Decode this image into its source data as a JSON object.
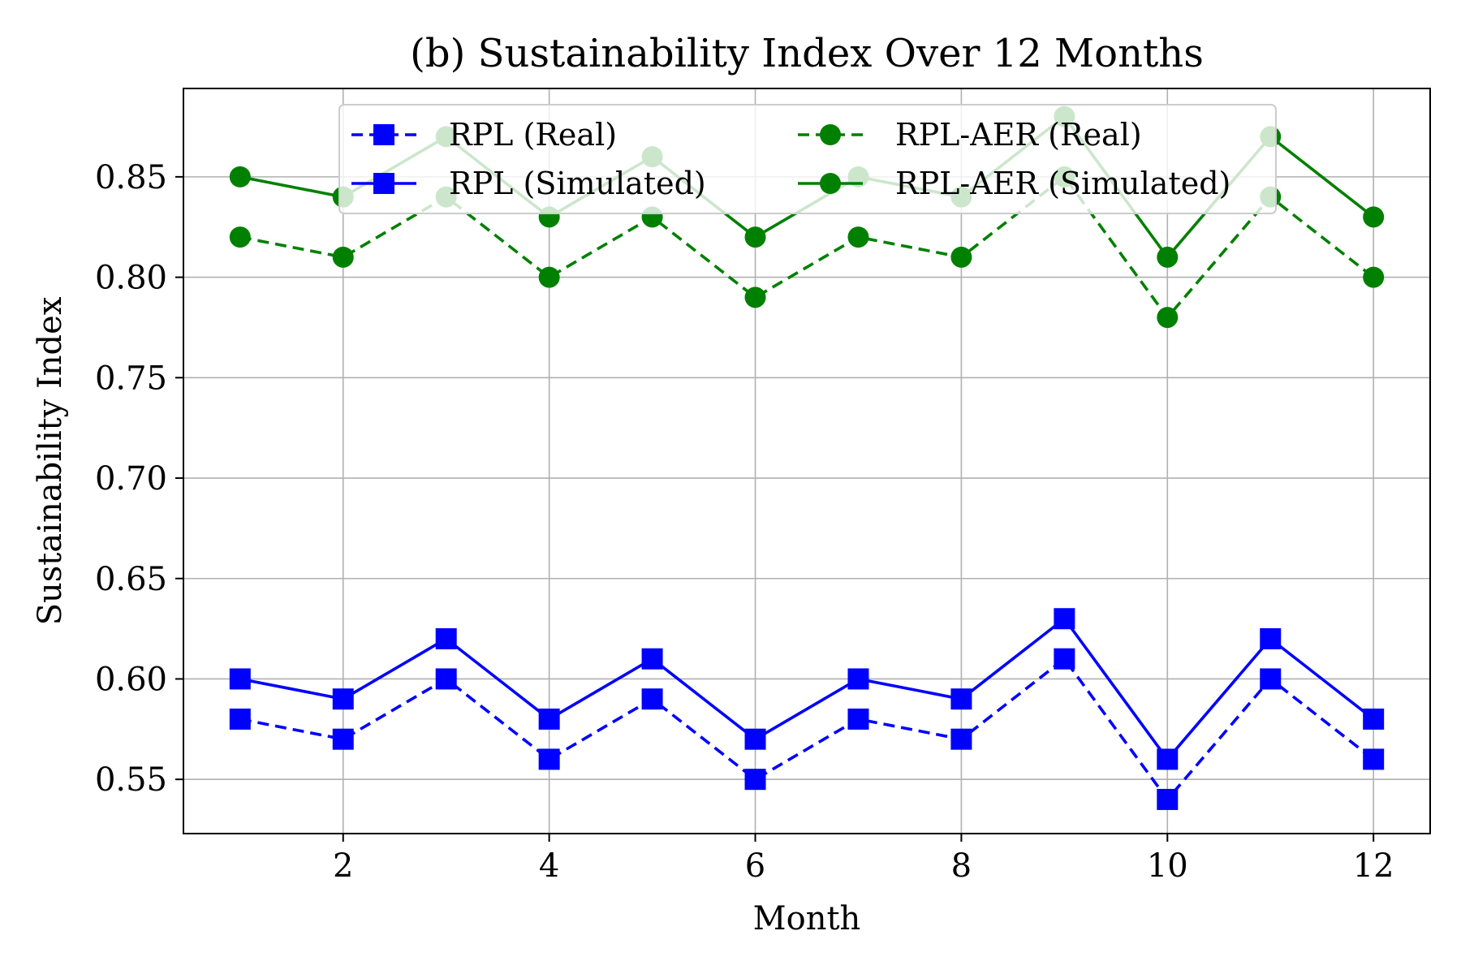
{
  "chart_data": {
    "type": "line",
    "title": "(b) Sustainability Index Over 12 Months",
    "xlabel": "Month",
    "ylabel": "Sustainability Index",
    "x": [
      1,
      2,
      3,
      4,
      5,
      6,
      7,
      8,
      9,
      10,
      11,
      12
    ],
    "xticks": [
      2,
      4,
      6,
      8,
      10,
      12
    ],
    "xtick_labels": [
      "2",
      "4",
      "6",
      "8",
      "10",
      "12"
    ],
    "yticks": [
      0.55,
      0.6,
      0.65,
      0.7,
      0.75,
      0.8,
      0.85
    ],
    "ytick_labels": [
      "0.55",
      "0.60",
      "0.65",
      "0.70",
      "0.75",
      "0.80",
      "0.85"
    ],
    "xlim": [
      0.45,
      12.55
    ],
    "ylim": [
      0.523,
      0.894
    ],
    "grid": true,
    "legend_position": "top-center",
    "series": [
      {
        "name": "RPL (Real)",
        "color": "#0000ff",
        "marker": "square",
        "linestyle": "dashed",
        "values": [
          0.58,
          0.57,
          0.6,
          0.56,
          0.59,
          0.55,
          0.58,
          0.57,
          0.61,
          0.54,
          0.6,
          0.56
        ]
      },
      {
        "name": "RPL (Simulated)",
        "color": "#0000ff",
        "marker": "square",
        "linestyle": "solid",
        "values": [
          0.6,
          0.59,
          0.62,
          0.58,
          0.61,
          0.57,
          0.6,
          0.59,
          0.63,
          0.56,
          0.62,
          0.58
        ]
      },
      {
        "name": "RPL-AER (Real)",
        "color": "#008000",
        "marker": "circle",
        "linestyle": "dashed",
        "values": [
          0.82,
          0.81,
          0.84,
          0.8,
          0.83,
          0.79,
          0.82,
          0.81,
          0.85,
          0.78,
          0.84,
          0.8
        ]
      },
      {
        "name": "RPL-AER (Simulated)",
        "color": "#008000",
        "marker": "circle",
        "linestyle": "solid",
        "values": [
          0.85,
          0.84,
          0.87,
          0.83,
          0.86,
          0.82,
          0.85,
          0.84,
          0.88,
          0.81,
          0.87,
          0.83
        ]
      }
    ]
  }
}
